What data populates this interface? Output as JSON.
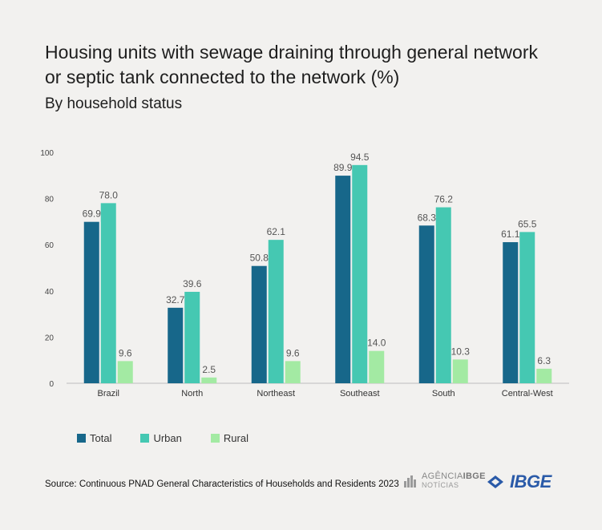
{
  "header": {
    "title": "Housing units with sewage draining through general network or septic tank connected to the network (%)",
    "subtitle": "By household status"
  },
  "footer": {
    "source": "Source: Continuous PNAD General Characteristics of Households and Residents 2023",
    "agencia_prefix": "AGÊNCIA",
    "agencia_brand": "IBGE",
    "agencia_sub": "NOTÍCIAS",
    "ibge_logo_text": "IBGE"
  },
  "colors": {
    "total": "#17678a",
    "urban": "#45c8b2",
    "rural": "#a3eaa3",
    "ibge_blue": "#2a5aa8"
  },
  "chart_data": {
    "type": "bar",
    "title": "Housing units with sewage draining through general network or septic tank connected to the network (%)",
    "subtitle": "By household status",
    "categories": [
      "Brazil",
      "North",
      "Northeast",
      "Southeast",
      "South",
      "Central-West"
    ],
    "series": [
      {
        "name": "Total",
        "values": [
          69.9,
          32.7,
          50.8,
          89.9,
          68.3,
          61.1
        ]
      },
      {
        "name": "Urban",
        "values": [
          78.0,
          39.6,
          62.1,
          94.5,
          76.2,
          65.5
        ]
      },
      {
        "name": "Rural",
        "values": [
          9.6,
          2.5,
          9.6,
          14.0,
          10.3,
          6.3
        ]
      }
    ],
    "ylim": [
      0,
      100
    ],
    "yticks": [
      0,
      20,
      40,
      60,
      80,
      100
    ],
    "xlabel": "",
    "ylabel": "",
    "grid": false,
    "legend_position": "bottom-left",
    "data_labels": true
  }
}
